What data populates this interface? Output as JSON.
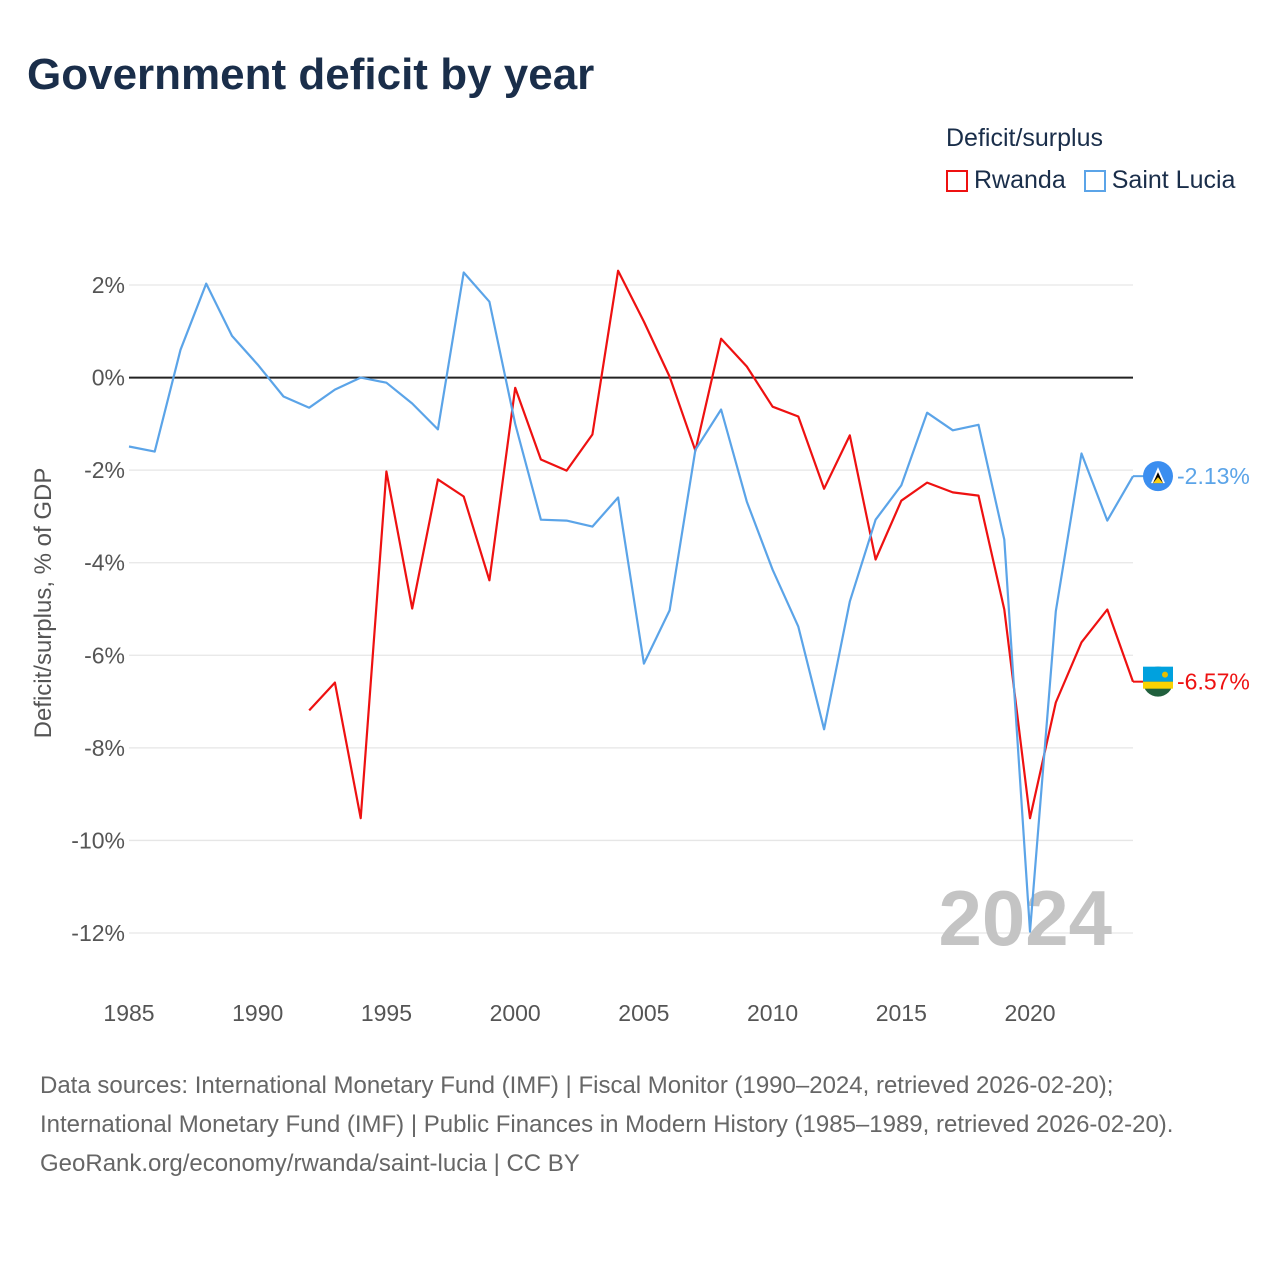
{
  "title": "Government deficit by year",
  "legend": {
    "title": "Deficit/surplus"
  },
  "source": {
    "line1": "Data sources: International Monetary Fund (IMF) | Fiscal Monitor (1990–2024, retrieved 2026-02-20); International Monetary Fund (IMF) | Public Finances in Modern History (1985–1989, retrieved 2026-02-20).",
    "line2": "GeoRank.org/economy/rwanda/saint-lucia | CC BY"
  },
  "chart_data": {
    "type": "line",
    "title": "Government deficit by year",
    "ylabel": "Deficit/surplus, % of GDP",
    "xlabel": "",
    "year_watermark": "2024",
    "xlim": [
      1985,
      2024
    ],
    "ylim": [
      -12,
      2
    ],
    "x_ticks": [
      1985,
      1990,
      1995,
      2000,
      2005,
      2010,
      2015,
      2020
    ],
    "x_tick_labels": [
      "1985",
      "1990",
      "1995",
      "2000",
      "2005",
      "2010",
      "2015",
      "2020"
    ],
    "y_ticks": [
      2,
      0,
      -2,
      -4,
      -6,
      -8,
      -10,
      -12
    ],
    "y_tick_labels": [
      "2%",
      "0%",
      "-2%",
      "-4%",
      "-6%",
      "-8%",
      "-10%",
      "-12%"
    ],
    "grid": true,
    "legend_position": "top-right",
    "series": [
      {
        "name": "Rwanda",
        "color": "#ee1111",
        "start_year": 1992,
        "end_label": "-6.57%",
        "values": [
          -7.19,
          -6.59,
          -9.52,
          -2.03,
          -4.99,
          -2.2,
          -2.57,
          -4.38,
          -0.22,
          -1.77,
          -2.01,
          -1.23,
          2.31,
          1.21,
          0.02,
          -1.58,
          0.84,
          0.24,
          -0.63,
          -0.84,
          -2.4,
          -1.25,
          -3.93,
          -2.66,
          -2.27,
          -2.48,
          -2.55,
          -5.01,
          -9.52,
          -7.02,
          -5.72,
          -5.01,
          -6.57
        ]
      },
      {
        "name": "Saint Lucia",
        "color": "#5ba4e8",
        "start_year": 1985,
        "end_label": "-2.13%",
        "values": [
          -1.49,
          -1.6,
          0.6,
          2.03,
          0.9,
          0.28,
          -0.41,
          -0.65,
          -0.26,
          0,
          -0.11,
          -0.56,
          -1.12,
          2.27,
          1.64,
          -1.0,
          -3.07,
          -3.09,
          -3.22,
          -2.59,
          -6.18,
          -5.03,
          -1.56,
          -0.69,
          -2.68,
          -4.15,
          -5.38,
          -7.6,
          -4.84,
          -3.07,
          -2.33,
          -0.76,
          -1.14,
          -1.02,
          -3.5,
          -11.97,
          -5.05,
          -1.64,
          -3.09,
          -2.13
        ]
      }
    ]
  }
}
